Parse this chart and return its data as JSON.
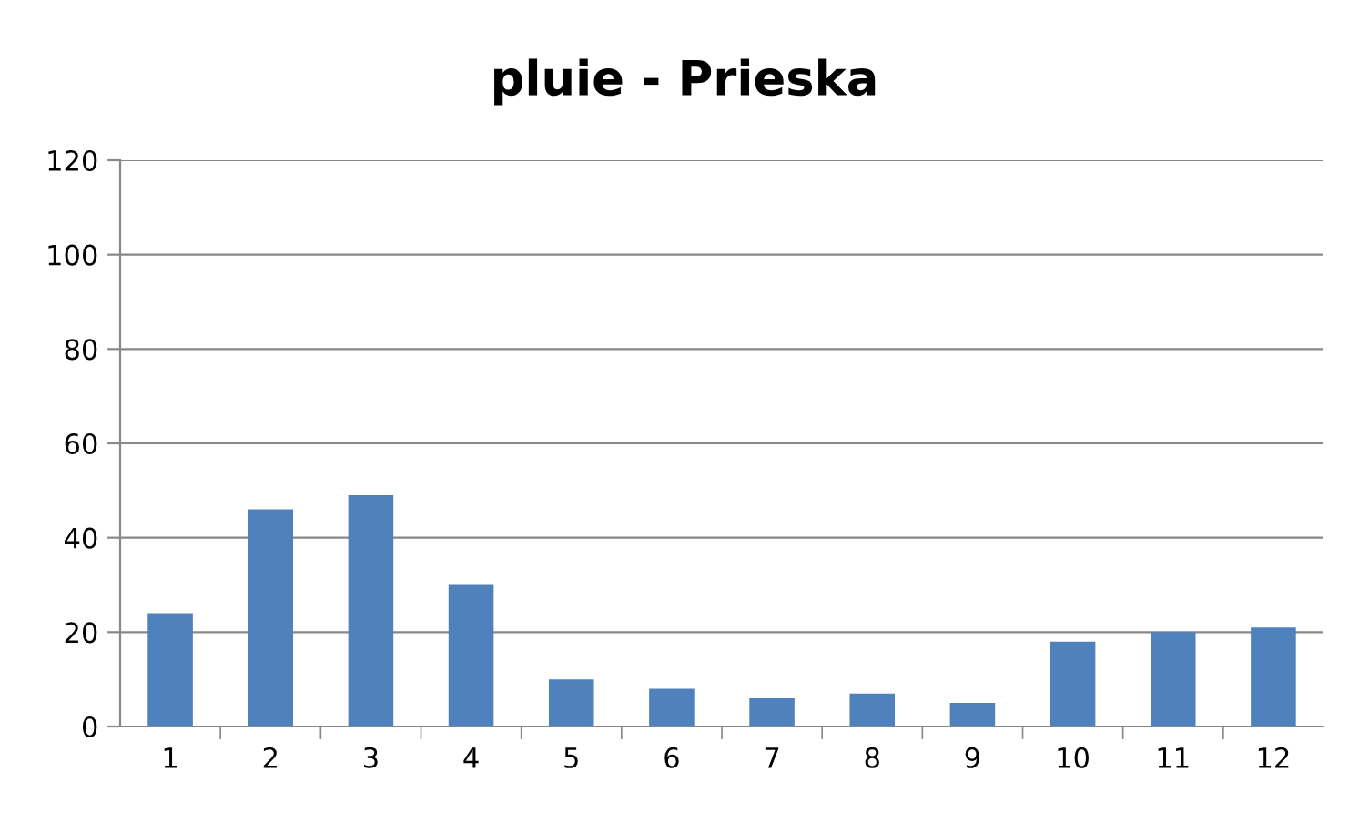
{
  "chart_data": {
    "type": "bar",
    "title": "pluie - Prieska",
    "categories": [
      "1",
      "2",
      "3",
      "4",
      "5",
      "6",
      "7",
      "8",
      "9",
      "10",
      "11",
      "12"
    ],
    "values": [
      24,
      46,
      49,
      30,
      10,
      8,
      6,
      7,
      5,
      18,
      20,
      21
    ],
    "color": "#4f81bd",
    "ylim": [
      0,
      120
    ],
    "yticks": [
      0,
      20,
      40,
      60,
      80,
      100,
      120
    ],
    "grid": "y",
    "legend": false
  }
}
